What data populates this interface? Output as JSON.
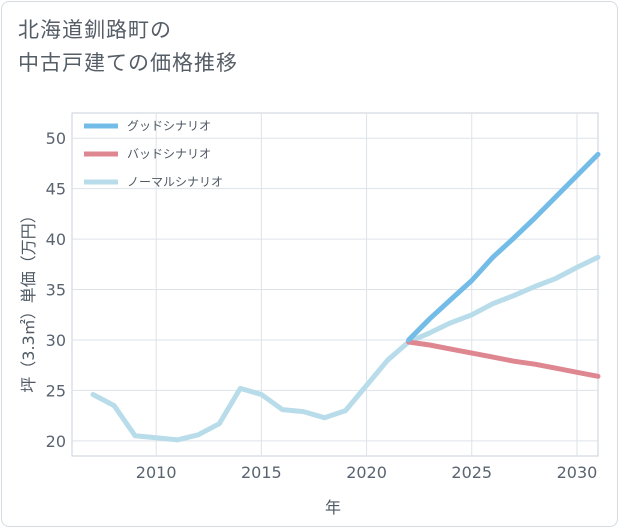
{
  "title": {
    "line1": "北海道釧路町の",
    "line2": "中古戸建ての価格推移"
  },
  "chart_data": {
    "type": "line",
    "xlabel": "年",
    "ylabel": "坪（3.3㎡）単価（万円）",
    "xlim": [
      2006,
      2031
    ],
    "ylim": [
      18.5,
      52.5
    ],
    "x_ticks": [
      2010,
      2015,
      2020,
      2025,
      2030
    ],
    "y_ticks": [
      20,
      25,
      30,
      35,
      40,
      45,
      50
    ],
    "grid": true,
    "legend_position": "top-left",
    "series": [
      {
        "name": "グッドシナリオ",
        "color": "#74bce8",
        "x": [
          2022,
          2023,
          2024,
          2025,
          2026,
          2027,
          2028,
          2029,
          2030,
          2031
        ],
        "y": [
          30.0,
          32.1,
          34.0,
          35.9,
          38.2,
          40.1,
          42.1,
          44.2,
          46.3,
          48.4
        ]
      },
      {
        "name": "バッドシナリオ",
        "color": "#df8790",
        "x": [
          2022,
          2023,
          2024,
          2025,
          2026,
          2027,
          2028,
          2029,
          2030,
          2031
        ],
        "y": [
          29.8,
          29.5,
          29.1,
          28.7,
          28.3,
          27.9,
          27.6,
          27.2,
          26.8,
          26.4
        ]
      },
      {
        "name": "ノーマルシナリオ",
        "color": "#b8dcea",
        "x": [
          2007,
          2008,
          2009,
          2010,
          2011,
          2012,
          2013,
          2014,
          2015,
          2016,
          2017,
          2018,
          2019,
          2020,
          2021,
          2022,
          2023,
          2024,
          2025,
          2026,
          2027,
          2028,
          2029,
          2030,
          2031
        ],
        "y": [
          24.6,
          23.5,
          20.5,
          20.3,
          20.1,
          20.6,
          21.7,
          25.2,
          24.6,
          23.1,
          22.9,
          22.3,
          23.0,
          25.5,
          28.0,
          29.8,
          30.7,
          31.7,
          32.5,
          33.6,
          34.4,
          35.3,
          36.1,
          37.2,
          38.2
        ]
      }
    ]
  }
}
